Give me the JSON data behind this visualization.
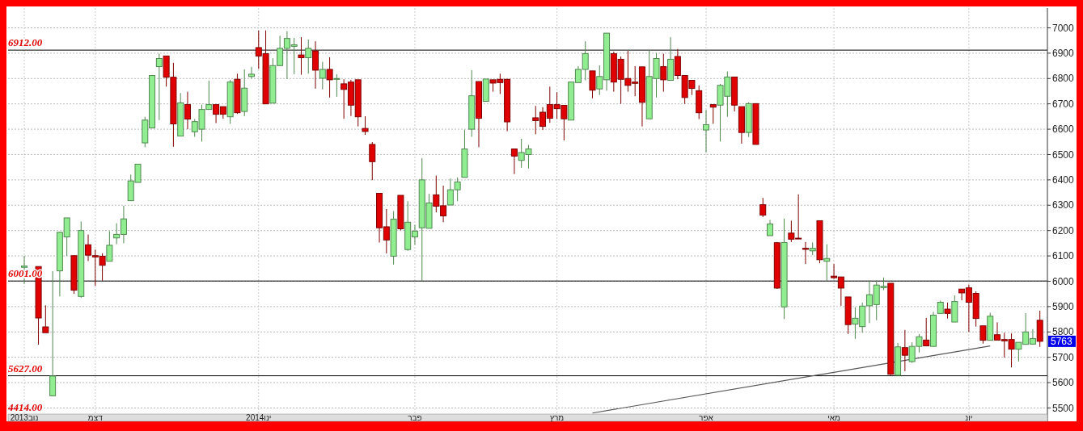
{
  "chart_data": {
    "type": "candlestick",
    "categories": [
      "2013נוב",
      null,
      null,
      null,
      null,
      null,
      null,
      null,
      null,
      null,
      "דצמ",
      null,
      null,
      null,
      null,
      null,
      null,
      null,
      null,
      null,
      null,
      null,
      null,
      null,
      null,
      null,
      null,
      null,
      null,
      null,
      null,
      null,
      null,
      "2014ינו",
      null,
      null,
      null,
      null,
      null,
      null,
      null,
      null,
      null,
      null,
      null,
      null,
      null,
      null,
      null,
      null,
      null,
      null,
      null,
      null,
      null,
      "פבר",
      null,
      null,
      null,
      null,
      null,
      null,
      null,
      null,
      null,
      null,
      null,
      null,
      null,
      null,
      null,
      null,
      null,
      null,
      null,
      "מרץ",
      null,
      null,
      null,
      null,
      null,
      null,
      null,
      null,
      null,
      null,
      null,
      null,
      null,
      null,
      null,
      null,
      null,
      null,
      null,
      null,
      "אפר",
      null,
      null,
      null,
      null,
      null,
      null,
      null,
      null,
      null,
      null,
      null,
      null,
      null,
      null,
      null,
      null,
      null,
      "מאי",
      null,
      null,
      null,
      null,
      null,
      null,
      null,
      null,
      null,
      null,
      null,
      null,
      null,
      null,
      null,
      null,
      null,
      null,
      "יונ",
      null,
      null,
      null,
      null,
      null,
      null,
      null,
      null,
      null,
      null
    ],
    "colors": [
      "#90ee90",
      null,
      "#e00000",
      "#e00000",
      "#90ee90",
      "#90ee90",
      "#90ee90",
      "#e00000",
      "#90ee90",
      "#e00000",
      "#e00000",
      "#e00000",
      "#90ee90",
      "#90ee90",
      "#90ee90",
      "#90ee90",
      "#90ee90",
      "#90ee90",
      "#90ee90",
      "#90ee90",
      "#e00000",
      "#e00000",
      "#90ee90",
      "#e00000",
      "#90ee90",
      "#90ee90",
      "#90ee90",
      "#e00000",
      "#e00000",
      "#90ee90",
      "#e00000",
      "#90ee90",
      "#90ee90",
      "#e00000",
      "#e00000",
      "#90ee90",
      "#90ee90",
      "#90ee90",
      "#90ee90",
      "#e00000",
      "#90ee90",
      "#e00000",
      "#90ee90",
      "#e00000",
      "#90ee90",
      "#e00000",
      "#e00000",
      "#e00000",
      "#e00000",
      "#e00000",
      "#e00000",
      "#e00000",
      "#90ee90",
      "#e00000",
      "#90ee90",
      "#90ee90",
      "#90ee90",
      "#90ee90",
      "#e00000",
      "#e00000",
      "#90ee90",
      "#90ee90",
      "#90ee90",
      "#90ee90",
      "#e00000",
      "#90ee90",
      "#e00000",
      "#e00000",
      "#e00000",
      "#e00000",
      "#90ee90",
      "#90ee90",
      "#e00000",
      "#e00000",
      "#e00000",
      "#e00000",
      "#e00000",
      "#90ee90",
      "#90ee90",
      "#90ee90",
      "#e00000",
      "#90ee90",
      "#90ee90",
      "#e00000",
      "#e00000",
      "#e00000",
      "#e00000",
      "#e00000",
      "#90ee90",
      "#90ee90",
      "#e00000",
      "#90ee90",
      "#e00000",
      "#e00000",
      "#e00000",
      "#e00000",
      "#90ee90",
      "#e00000",
      "#90ee90",
      "#90ee90",
      "#e00000",
      "#e00000",
      "#90ee90",
      "#e00000",
      "#e00000",
      "#90ee90",
      "#e00000",
      "#90ee90",
      "#e00000",
      "#e00000",
      "#e00000",
      "#90ee90",
      "#e00000",
      "#90ee90",
      "#e00000",
      "#e00000",
      "#e00000",
      "#90ee90",
      "#90ee90",
      "#90ee90",
      "#90ee90",
      "#90ee90",
      "#e00000",
      "#90ee90",
      "#e00000",
      "#90ee90",
      "#90ee90",
      "#e00000",
      "#90ee90",
      "#90ee90",
      "#e00000",
      "#90ee90",
      "#e00000",
      "#e00000",
      "#e00000",
      "#e00000",
      "#90ee90",
      "#e00000",
      "#e00000",
      "#e00000",
      "#90ee90",
      "#90ee90",
      "#90ee90",
      "#e00000"
    ],
    "ohlc": [
      [
        6055,
        6100,
        5990,
        6060
      ],
      null,
      [
        6058,
        6058,
        5750,
        5855
      ],
      [
        5820,
        5905,
        5797,
        5797
      ],
      [
        5548,
        6040,
        5548,
        5626
      ],
      [
        6041,
        6195,
        5940,
        6193
      ],
      [
        6175,
        6250,
        6100,
        6250
      ],
      [
        6101,
        6101,
        5950,
        5965
      ],
      [
        5940,
        6236,
        5935,
        6200
      ],
      [
        6144,
        6184,
        6080,
        6103
      ],
      [
        6101,
        6125,
        5982,
        6096
      ],
      [
        6099,
        6110,
        6002,
        6063
      ],
      [
        6079,
        6198,
        6079,
        6142
      ],
      [
        6171,
        6229,
        6146,
        6185
      ],
      [
        6185,
        6298,
        6150,
        6246
      ],
      [
        6318,
        6421,
        6318,
        6396
      ],
      [
        6390,
        6462,
        6390,
        6462
      ],
      [
        6546,
        6649,
        6529,
        6636
      ],
      [
        6605,
        6812,
        6605,
        6812
      ],
      [
        6847,
        6898,
        6636,
        6879
      ],
      [
        6889,
        6889,
        6768,
        6805
      ],
      [
        6805,
        6862,
        6531,
        6621
      ],
      [
        6573,
        6743,
        6573,
        6704
      ],
      [
        6697,
        6748,
        6600,
        6640
      ],
      [
        6590,
        6640,
        6570,
        6630
      ],
      [
        6600,
        6697,
        6551,
        6678
      ],
      [
        6678,
        6792,
        6678,
        6697
      ],
      [
        6697,
        6697,
        6624,
        6659
      ],
      [
        6689,
        6689,
        6641,
        6659
      ],
      [
        6649,
        6795,
        6621,
        6786
      ],
      [
        6797,
        6819,
        6660,
        6665
      ],
      [
        6670,
        6836,
        6651,
        6762
      ],
      [
        6808,
        6846,
        6800,
        6817
      ],
      [
        6922,
        6990,
        6838,
        6889
      ],
      [
        6898,
        6990,
        6700,
        6700
      ],
      [
        6703,
        6880,
        6703,
        6851
      ],
      [
        6851,
        6969,
        6851,
        6919
      ],
      [
        6919,
        6987,
        6798,
        6958
      ],
      [
        6927,
        6960,
        6817,
        6933
      ],
      [
        6893,
        6963,
        6815,
        6882
      ],
      [
        6882,
        6954,
        6819,
        6919
      ],
      [
        6909,
        6947,
        6760,
        6833
      ],
      [
        6801,
        6866,
        6757,
        6836
      ],
      [
        6836,
        6884,
        6725,
        6795
      ],
      [
        6797,
        6817,
        6728,
        6800
      ],
      [
        6779,
        6797,
        6641,
        6757
      ],
      [
        6786,
        6795,
        6652,
        6695
      ],
      [
        6795,
        6795,
        6611,
        6649
      ],
      [
        6603,
        6651,
        6578,
        6591
      ],
      [
        6540,
        6549,
        6399,
        6472
      ],
      [
        6347,
        6347,
        6153,
        6211
      ],
      [
        6215,
        6285,
        6110,
        6163
      ],
      [
        6099,
        6277,
        6066,
        6245
      ],
      [
        6339,
        6339,
        6201,
        6207
      ],
      [
        6125,
        6316,
        6120,
        6233
      ],
      [
        6175,
        6222,
        6144,
        6198
      ],
      [
        6211,
        6486,
        6001,
        6400
      ],
      [
        6209,
        6345,
        6209,
        6309
      ],
      [
        6341,
        6417,
        6272,
        6296
      ],
      [
        6298,
        6377,
        6233,
        6258
      ],
      [
        6301,
        6405,
        6301,
        6361
      ],
      [
        6361,
        6410,
        6316,
        6392
      ],
      [
        6410,
        6598,
        6410,
        6522
      ],
      [
        6600,
        6833,
        6570,
        6732
      ],
      [
        6788,
        6788,
        6529,
        6643
      ],
      [
        6710,
        6798,
        6710,
        6798
      ],
      [
        6795,
        6795,
        6748,
        6782
      ],
      [
        6797,
        6819,
        6739,
        6784
      ],
      [
        6797,
        6797,
        6592,
        6629
      ],
      [
        6522,
        6522,
        6423,
        6494
      ],
      [
        6477,
        6562,
        6448,
        6508
      ],
      [
        6500,
        6538,
        6445,
        6522
      ],
      [
        6645,
        6692,
        6580,
        6634
      ],
      [
        6667,
        6687,
        6597,
        6611
      ],
      [
        6697,
        6768,
        6625,
        6643
      ],
      [
        6697,
        6746,
        6641,
        6681
      ],
      [
        6694,
        6694,
        6556,
        6641
      ],
      [
        6636,
        6786,
        6636,
        6786
      ],
      [
        6784,
        6849,
        6784,
        6836
      ],
      [
        6836,
        6947,
        6793,
        6898
      ],
      [
        6830,
        6830,
        6722,
        6754
      ],
      [
        6759,
        6852,
        6735,
        6808
      ],
      [
        6795,
        6979,
        6752,
        6979
      ],
      [
        6898,
        6906,
        6748,
        6786
      ],
      [
        6876,
        6887,
        6700,
        6797
      ],
      [
        6800,
        6909,
        6748,
        6773
      ],
      [
        6786,
        6849,
        6730,
        6781
      ],
      [
        6846,
        6846,
        6611,
        6706
      ],
      [
        6641,
        6911,
        6641,
        6808
      ],
      [
        6800,
        6900,
        6725,
        6879
      ],
      [
        6847,
        6898,
        6748,
        6795
      ],
      [
        6793,
        6963,
        6793,
        6876
      ],
      [
        6887,
        6916,
        6797,
        6812
      ],
      [
        6812,
        6812,
        6700,
        6725
      ],
      [
        6793,
        6793,
        6735,
        6761
      ],
      [
        6752,
        6773,
        6640,
        6665
      ],
      [
        6597,
        6676,
        6508,
        6618
      ],
      [
        6697,
        6697,
        6621,
        6687
      ],
      [
        6695,
        6779,
        6551,
        6773
      ],
      [
        6730,
        6828,
        6649,
        6806
      ],
      [
        6806,
        6806,
        6670,
        6695
      ],
      [
        6689,
        6689,
        6543,
        6587
      ],
      [
        6587,
        6706,
        6569,
        6701
      ],
      [
        6701,
        6701,
        6540,
        6540
      ],
      [
        6302,
        6329,
        6253,
        6261
      ],
      [
        6180,
        6242,
        6180,
        6226
      ],
      [
        6152,
        6155,
        5970,
        5973
      ],
      [
        5899,
        6247,
        5851,
        6153
      ],
      [
        6190,
        6239,
        6155,
        6166
      ],
      [
        6170,
        6343,
        6168,
        6168
      ],
      [
        6130,
        6155,
        6068,
        6126
      ],
      [
        6120,
        6153,
        6103,
        6130
      ],
      [
        6239,
        6239,
        6071,
        6085
      ],
      [
        6079,
        6146,
        6001,
        6090
      ],
      [
        6020,
        6068,
        6009,
        6014
      ],
      [
        6017,
        6017,
        5903,
        5973
      ],
      [
        5938,
        5938,
        5792,
        5829
      ],
      [
        5831,
        5898,
        5773,
        5854
      ],
      [
        5821,
        5916,
        5797,
        5902
      ],
      [
        5903,
        6001,
        5835,
        5947
      ],
      [
        5908,
        6003,
        5846,
        5985
      ],
      [
        5975,
        6015,
        5965,
        5980
      ],
      [
        5992,
        5992,
        5630,
        5633
      ],
      [
        5629,
        5756,
        5627,
        5741
      ],
      [
        5738,
        5808,
        5645,
        5708
      ],
      [
        5683,
        5759,
        5678,
        5743
      ],
      [
        5743,
        5792,
        5719,
        5781
      ],
      [
        5768,
        5855,
        5745,
        5745
      ],
      [
        5743,
        5879,
        5743,
        5866
      ],
      [
        5873,
        5924,
        5873,
        5917
      ],
      [
        5890,
        5916,
        5853,
        5873
      ],
      [
        5839,
        5944,
        5839,
        5920
      ],
      [
        5969,
        5969,
        5925,
        5954
      ],
      [
        5974,
        5987,
        5800,
        5917
      ],
      [
        5952,
        5960,
        5821,
        5853
      ],
      [
        5824,
        5824,
        5754,
        5767
      ],
      [
        5767,
        5876,
        5767,
        5862
      ],
      [
        5789,
        5838,
        5768,
        5768
      ],
      [
        5770,
        5797,
        5699,
        5765
      ],
      [
        5770,
        5794,
        5660,
        5732
      ],
      [
        5732,
        5759,
        5683,
        5759
      ],
      [
        5751,
        5874,
        5751,
        5800
      ],
      [
        5752,
        5811,
        5752,
        5774
      ],
      [
        5846,
        5884,
        5741,
        5763
      ]
    ],
    "series": [
      {
        "type": "line",
        "values": [
          null,
          null,
          null,
          null,
          null,
          null,
          null,
          null,
          null,
          null,
          null,
          null,
          null,
          null,
          null,
          null,
          null,
          null,
          null,
          null,
          null,
          null,
          null,
          null,
          null,
          null,
          null,
          null,
          null,
          null,
          null,
          null,
          null,
          null,
          null,
          null,
          null,
          null,
          null,
          null,
          null,
          null,
          null,
          null,
          null,
          null,
          null,
          null,
          null,
          null,
          null,
          null,
          null,
          null,
          null,
          null,
          null,
          null,
          null,
          null,
          null,
          null,
          null,
          null,
          null,
          null,
          null,
          null,
          null,
          null,
          null,
          null,
          null,
          null,
          null,
          null,
          null,
          null,
          null,
          null,
          5480,
          null,
          null,
          null,
          null,
          null,
          null,
          null,
          null,
          null,
          null,
          null,
          null,
          null,
          null,
          null,
          null,
          null,
          null,
          null,
          null,
          null,
          null,
          null,
          null,
          null,
          null,
          null,
          null,
          null,
          null,
          null,
          null,
          null,
          null,
          null,
          null,
          null,
          null,
          null,
          null,
          null,
          null,
          null,
          null,
          null,
          null,
          null,
          null,
          null,
          null,
          null,
          null,
          null,
          null,
          null,
          5745,
          null,
          null,
          null,
          null,
          null,
          null,
          null
        ],
        "color": "#555555"
      }
    ],
    "ylim": [
      5476,
      7078
    ],
    "yticks": [
      5500,
      5600,
      5700,
      5800,
      5900,
      6000,
      6100,
      6200,
      6300,
      6400,
      6500,
      6600,
      6700,
      6800,
      6900,
      7000
    ],
    "grid": true,
    "ref_lines": [
      {
        "axis": "y",
        "value": 6912,
        "label": "6912.00",
        "color": "#000000"
      },
      {
        "axis": "y",
        "value": 6001,
        "label": "6001.00",
        "color": "#000000"
      },
      {
        "axis": "y",
        "value": 5627,
        "label": "5627.00",
        "color": "#000000"
      }
    ],
    "annotations": [
      "4414.00",
      "5763"
    ]
  }
}
